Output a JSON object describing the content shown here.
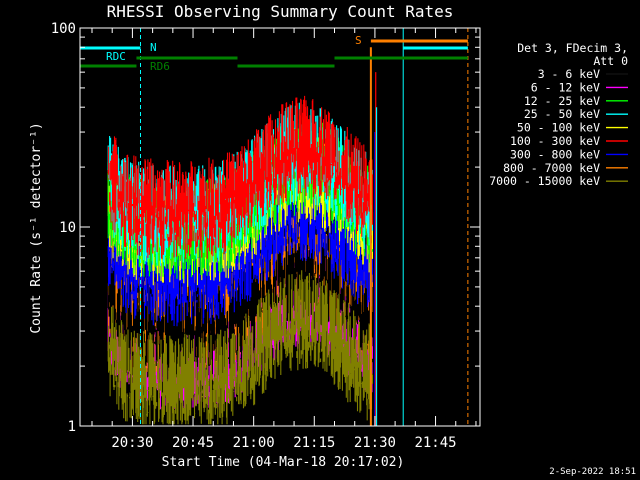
{
  "chart_data": {
    "type": "line",
    "title": "RHESSI Observing Summary Count Rates",
    "xlabel": "Start Time (04-Mar-18 20:17:02)",
    "ylabel": "Count Rate (s⁻¹ detector⁻¹)",
    "y_scale": "log",
    "ylim": [
      1,
      100
    ],
    "xlim": [
      "20:17:02",
      "21:56:00"
    ],
    "x_ticks": [
      "20:30",
      "20:45",
      "21:00",
      "21:15",
      "21:30",
      "21:45"
    ],
    "y_ticks": [
      "1",
      "10",
      "100"
    ],
    "legend_position": "right",
    "legend_header": [
      "Det 3, FDecim 3,",
      "Att 0"
    ],
    "series": [
      {
        "name": "3 - 6 keV",
        "color": "#000000",
        "level": 3.5
      },
      {
        "name": "6 - 12 keV",
        "color": "#ff00ff",
        "level": 2.6
      },
      {
        "name": "12 - 25 keV",
        "color": "#00ff00",
        "level": 12
      },
      {
        "name": "25 - 50 keV",
        "color": "#00ffff",
        "level": 14
      },
      {
        "name": "50 - 100 keV",
        "color": "#ffff00",
        "level": 11
      },
      {
        "name": "100 - 300 keV",
        "color": "#ff0000",
        "level": 15
      },
      {
        "name": "300 - 800 keV",
        "color": "#0000ff",
        "level": 7
      },
      {
        "name": "800 - 7000 keV",
        "color": "#ff8000",
        "level": 4
      },
      {
        "name": "7000 - 15000 keV",
        "color": "#808000",
        "level": 2
      }
    ],
    "flags": [
      {
        "label": "RDC",
        "color": "#00ffff",
        "start": "20:17:02",
        "end": "20:32:00"
      },
      {
        "label": "N",
        "color": "#00ffff",
        "start": "20:32:00",
        "end": "20:32:00"
      },
      {
        "label": "RD6",
        "color": "#008000",
        "start": "20:17:02",
        "end": "20:31:00"
      },
      {
        "label": "S",
        "color": "#ff8000",
        "start": "21:29:00",
        "end": "21:53:00"
      }
    ],
    "vertical_markers": [
      "20:17:02",
      "20:32:00",
      "21:37:00",
      "21:53:00"
    ]
  },
  "timestamp": "2-Sep-2022 18:51"
}
